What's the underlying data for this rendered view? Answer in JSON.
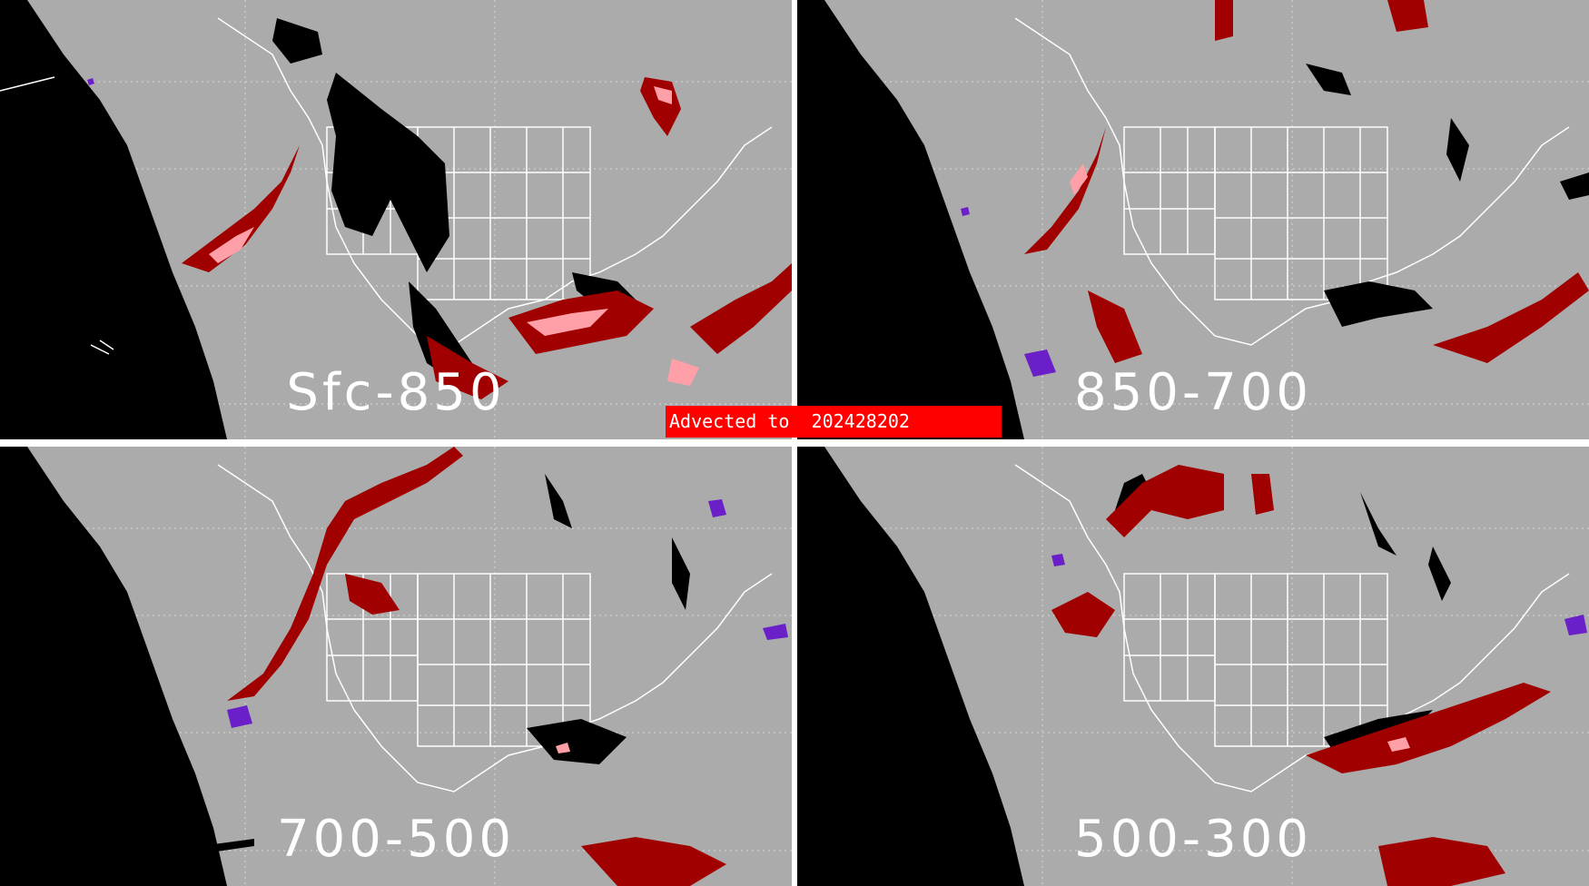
{
  "banner": {
    "prefix": "Advected to",
    "stamp": "202428202"
  },
  "panels": [
    {
      "label": "Sfc-850"
    },
    {
      "label": "850-700"
    },
    {
      "label": "700-500"
    },
    {
      "label": "500-300"
    }
  ],
  "colors": {
    "land": "#ababab",
    "ocean_mask": "#000000",
    "coast_lines": "#ffffff",
    "grid_lines": "#d8d8d8",
    "dark_red": "#a00000",
    "pink": "#ffa0a8",
    "purple": "#6a1fc8",
    "divider": "#ffffff",
    "banner": "#ff0000"
  },
  "legend_categories": [
    "dark-red",
    "pink",
    "black",
    "purple"
  ]
}
